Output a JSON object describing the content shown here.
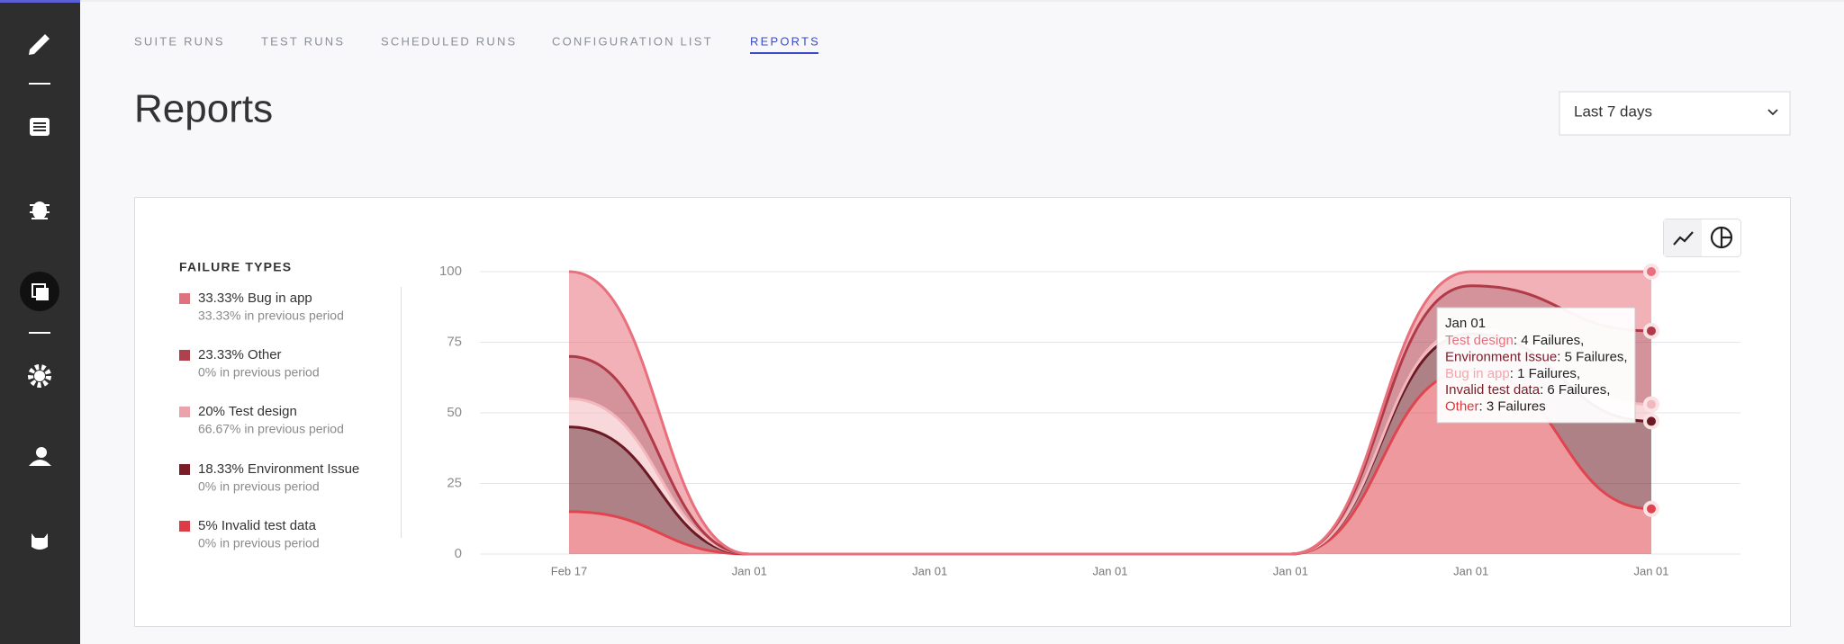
{
  "nav": {
    "tabs": [
      "SUITE RUNS",
      "TEST RUNS",
      "SCHEDULED RUNS",
      "CONFIGURATION LIST",
      "REPORTS"
    ],
    "active": 4
  },
  "header": {
    "title": "Reports",
    "period": "Last 7 days"
  },
  "chart_data": {
    "type": "stacked-area",
    "legend_title": "FAILURE TYPES",
    "legend_items": [
      {
        "label": "33.33% Bug in app",
        "note": "33.33% in previous period",
        "color": "#e0727e"
      },
      {
        "label": "23.33% Other",
        "note": "0% in previous period",
        "color": "#b0404c"
      },
      {
        "label": "20% Test design",
        "note": "66.67% in previous period",
        "color": "#eba3ab"
      },
      {
        "label": "18.33% Environment Issue",
        "note": "0% in previous period",
        "color": "#7a1d28"
      },
      {
        "label": "5% Invalid test data",
        "note": "0% in previous period",
        "color": "#dc3c45"
      }
    ],
    "categories": [
      "Feb 17",
      "Jan 01",
      "Jan 01",
      "Jan 01",
      "Jan 01",
      "Jan 01",
      "Jan 01"
    ],
    "series": [
      {
        "name": "Invalid test data",
        "color": "#e0454f",
        "values": [
          15,
          0,
          0,
          0,
          0,
          65,
          16
        ]
      },
      {
        "name": "Environment Issue",
        "color": "#6b1a24",
        "values": [
          30,
          0,
          0,
          0,
          0,
          13,
          31
        ]
      },
      {
        "name": "Test design",
        "color": "#f2b8bd",
        "values": [
          10,
          0,
          0,
          0,
          0,
          2,
          6
        ]
      },
      {
        "name": "Other",
        "color": "#b03a48",
        "values": [
          15,
          0,
          0,
          0,
          0,
          15,
          26
        ]
      },
      {
        "name": "Bug in app",
        "color": "#e8707c",
        "values": [
          30,
          0,
          0,
          0,
          0,
          5,
          21
        ]
      }
    ],
    "ylim": [
      0,
      100
    ],
    "yticks": [
      0,
      25,
      50,
      75,
      100
    ],
    "grid": true,
    "tooltip": {
      "title": "Jan 01",
      "rows": [
        {
          "name": "Test design",
          "text": ": 4 Failures,",
          "color": "#e8707c"
        },
        {
          "name": "Environment Issue",
          "text": ": 5 Failures,",
          "color": "#7a1d28"
        },
        {
          "name": "Bug in app",
          "text": ": 1 Failures,",
          "color": "#f0a7ae"
        },
        {
          "name": "Invalid test data",
          "text": ": 6 Failures,",
          "color": "#7a1d28"
        },
        {
          "name": "Other",
          "text": ": 3 Failures",
          "color": "#d9383f"
        }
      ]
    }
  }
}
